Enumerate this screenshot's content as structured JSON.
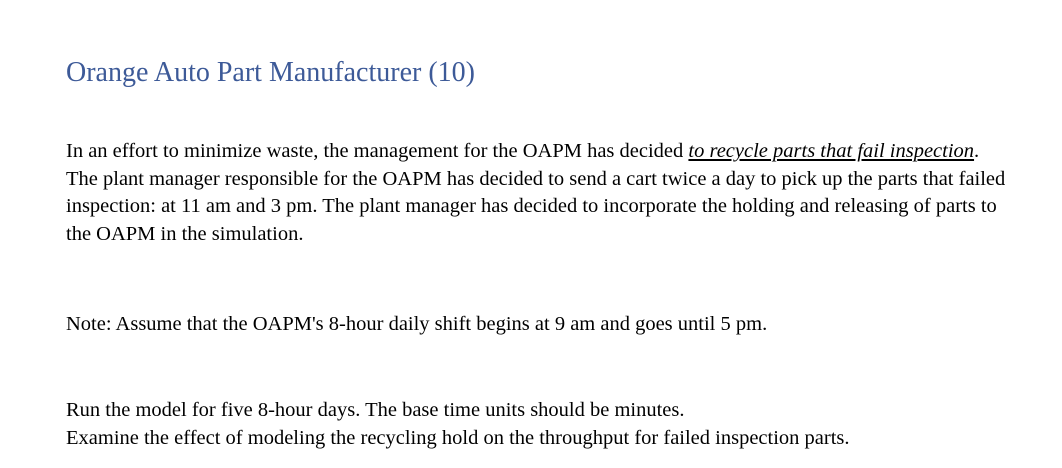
{
  "document": {
    "title": "Orange Auto Part Manufacturer (10)",
    "paragraph1": {
      "before": "In an effort to minimize waste, the management for the OAPM has decided ",
      "emphasis": "to recycle parts that fail inspection",
      "after": ". The plant manager responsible for the OAPM has decided to send a cart twice a day to pick up the parts that failed inspection: at 11 am and 3 pm. The plant manager has decided to incorporate the holding and releasing of parts to the OAPM in the simulation."
    },
    "note": "Note: Assume that the OAPM's 8-hour daily shift begins at 9 am and goes until 5 pm.",
    "instructions": [
      "Run the model for five 8-hour days. The base time units should be minutes.",
      "Examine the effect of modeling the recycling hold on the throughput for failed inspection parts."
    ]
  }
}
